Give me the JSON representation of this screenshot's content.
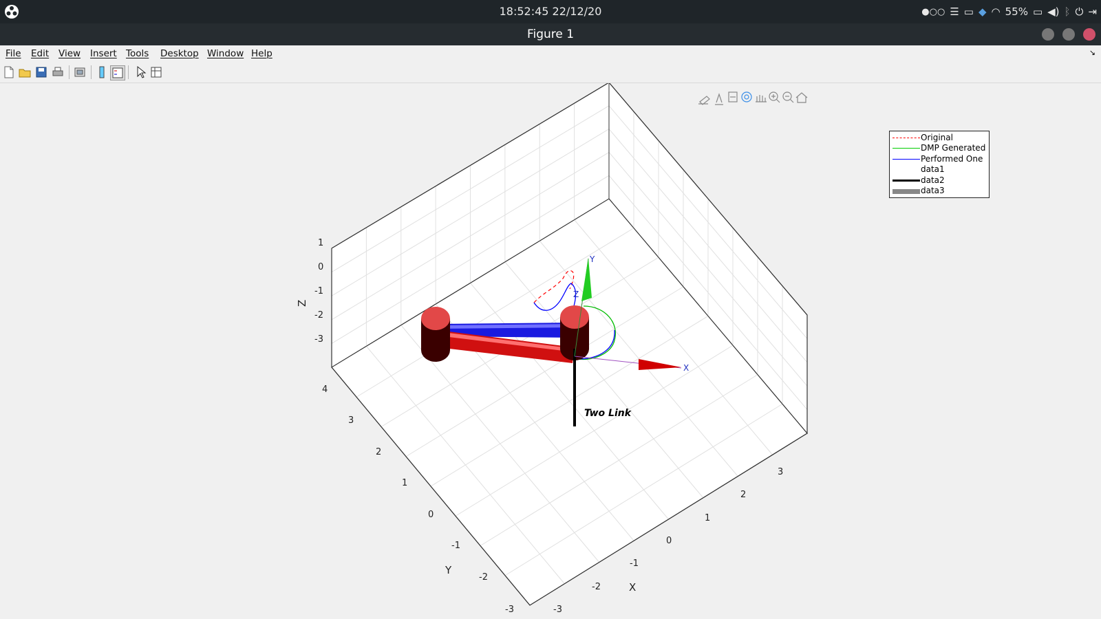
{
  "system": {
    "clock": "18:52:45  22/12/20",
    "battery": "55%"
  },
  "window": {
    "title": "Figure 1"
  },
  "menu": [
    "File",
    "Edit",
    "View",
    "Insert",
    "Tools",
    "Desktop",
    "Window",
    "Help"
  ],
  "toolbar_icons": [
    "new-figure-icon",
    "open-file-icon",
    "save-icon",
    "print-icon",
    "link-plot-icon",
    "colorbar-icon",
    "legend-icon",
    "edit-plot-icon",
    "property-inspector-icon"
  ],
  "axes_toolbar_icons": [
    "brush-icon",
    "data-tips-icon",
    "export-icon",
    "rotate-3d-icon",
    "pan-icon",
    "zoom-in-icon",
    "zoom-out-icon",
    "home-icon"
  ],
  "legend": [
    {
      "label": "Original",
      "color": "#ff0000",
      "style": "dashed"
    },
    {
      "label": "DMP Generated",
      "color": "#00cc00",
      "style": "solid"
    },
    {
      "label": "Performed One",
      "color": "#0000ff",
      "style": "solid"
    },
    {
      "label": "data1",
      "color": "#ffffff",
      "style": "none"
    },
    {
      "label": "data2",
      "color": "#000000",
      "style": "thick"
    },
    {
      "label": "data3",
      "color": "#888888",
      "style": "thicker"
    }
  ],
  "chart_data": {
    "type": "3d-robot-plot",
    "xlabel": "X",
    "ylabel": "Y",
    "zlabel": "Z",
    "x_ticks": [
      "-3",
      "-2",
      "-1",
      "0",
      "1",
      "2",
      "3"
    ],
    "y_ticks": [
      "-3",
      "-2",
      "-1",
      "0",
      "1",
      "2",
      "3",
      "4"
    ],
    "z_ticks": [
      "1",
      "0",
      "-1",
      "-2",
      "-3"
    ],
    "robot_name": "Two Link",
    "frame_labels": {
      "x": "X",
      "y": "Y",
      "z": "Z"
    },
    "grid": true
  }
}
